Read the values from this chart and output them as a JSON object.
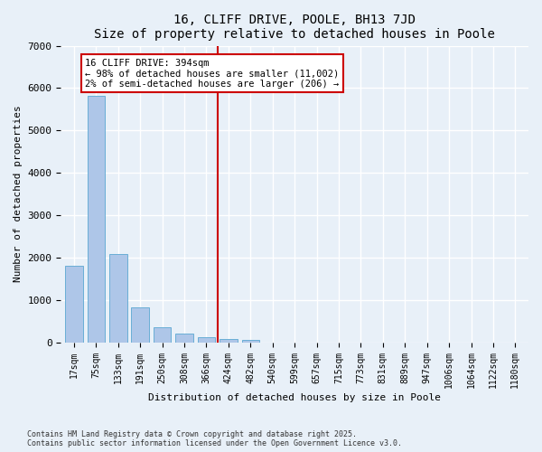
{
  "title": "16, CLIFF DRIVE, POOLE, BH13 7JD",
  "subtitle": "Size of property relative to detached houses in Poole",
  "xlabel": "Distribution of detached houses by size in Poole",
  "ylabel": "Number of detached properties",
  "categories": [
    "17sqm",
    "75sqm",
    "133sqm",
    "191sqm",
    "250sqm",
    "308sqm",
    "366sqm",
    "424sqm",
    "482sqm",
    "540sqm",
    "599sqm",
    "657sqm",
    "715sqm",
    "773sqm",
    "831sqm",
    "889sqm",
    "947sqm",
    "1006sqm",
    "1064sqm",
    "1122sqm",
    "1180sqm"
  ],
  "values": [
    1800,
    5820,
    2080,
    820,
    360,
    210,
    110,
    80,
    55,
    0,
    0,
    0,
    0,
    0,
    0,
    0,
    0,
    0,
    0,
    0,
    0
  ],
  "bar_color": "#aec6e8",
  "bar_edge_color": "#6aaed6",
  "vline_color": "#cc0000",
  "vline_xindex": 6.5,
  "annotation_title": "16 CLIFF DRIVE: 394sqm",
  "annotation_line1": "← 98% of detached houses are smaller (11,002)",
  "annotation_line2": "2% of semi-detached houses are larger (206) →",
  "annotation_box_edgecolor": "#cc0000",
  "ylim": [
    0,
    7000
  ],
  "yticks": [
    0,
    1000,
    2000,
    3000,
    4000,
    5000,
    6000,
    7000
  ],
  "footer1": "Contains HM Land Registry data © Crown copyright and database right 2025.",
  "footer2": "Contains public sector information licensed under the Open Government Licence v3.0.",
  "bg_color": "#e8f0f8"
}
